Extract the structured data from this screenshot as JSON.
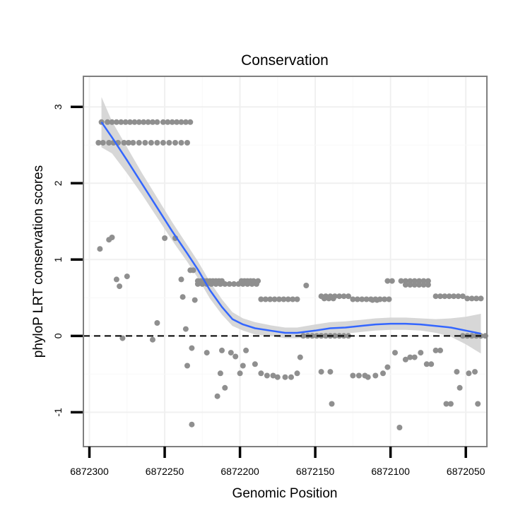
{
  "chart_data": {
    "type": "scatter",
    "title": "Conservation",
    "xlabel": "Genomic Position",
    "ylabel": "phyloP LRT conservation scores",
    "x_reversed": true,
    "xlim": [
      6872304,
      6872036
    ],
    "ylim": [
      -1.45,
      3.4
    ],
    "x_ticks": [
      6872300,
      6872250,
      6872200,
      6872150,
      6872100,
      6872050
    ],
    "x_tick_labels": [
      "6872300",
      "6872250",
      "6872200",
      "6872150",
      "6872100",
      "6872050"
    ],
    "y_ticks": [
      -1,
      0,
      1,
      2,
      3
    ],
    "y_tick_labels": [
      "-1",
      "0",
      "1",
      "2",
      "3"
    ],
    "reference_line": {
      "y": 0,
      "style": "dashed",
      "color": "#000000"
    },
    "colors": {
      "points": "#8f8f8f",
      "smooth_line": "#3366ff",
      "ribbon": "#d3d3d3",
      "panel_border": "#7f7f7f",
      "grid_major": "#f0f0f0",
      "grid_minor": "#f8f8f8"
    },
    "series": [
      {
        "name": "phyloP points",
        "points": [
          [
            6872292,
            2.8
          ],
          [
            6872288,
            2.8
          ],
          [
            6872285,
            2.8
          ],
          [
            6872282,
            2.8
          ],
          [
            6872279,
            2.8
          ],
          [
            6872276,
            2.8
          ],
          [
            6872273,
            2.8
          ],
          [
            6872270,
            2.8
          ],
          [
            6872267,
            2.8
          ],
          [
            6872264,
            2.8
          ],
          [
            6872261,
            2.8
          ],
          [
            6872258,
            2.8
          ],
          [
            6872255,
            2.8
          ],
          [
            6872251,
            2.8
          ],
          [
            6872248,
            2.8
          ],
          [
            6872245,
            2.8
          ],
          [
            6872242,
            2.8
          ],
          [
            6872239,
            2.8
          ],
          [
            6872236,
            2.8
          ],
          [
            6872233,
            2.8
          ],
          [
            6872294,
            2.53
          ],
          [
            6872291,
            2.53
          ],
          [
            6872287,
            2.53
          ],
          [
            6872284,
            2.53
          ],
          [
            6872281,
            2.53
          ],
          [
            6872277,
            2.53
          ],
          [
            6872274,
            2.53
          ],
          [
            6872271,
            2.53
          ],
          [
            6872267,
            2.53
          ],
          [
            6872263,
            2.53
          ],
          [
            6872259,
            2.53
          ],
          [
            6872255,
            2.53
          ],
          [
            6872251,
            2.53
          ],
          [
            6872247,
            2.53
          ],
          [
            6872243,
            2.53
          ],
          [
            6872239,
            2.53
          ],
          [
            6872235,
            2.53
          ],
          [
            6872293,
            1.14
          ],
          [
            6872287,
            1.26
          ],
          [
            6872285,
            1.29
          ],
          [
            6872282,
            0.74
          ],
          [
            6872280,
            0.65
          ],
          [
            6872275,
            0.78
          ],
          [
            6872278,
            -0.03
          ],
          [
            6872258,
            -0.05
          ],
          [
            6872255,
            0.17
          ],
          [
            6872250,
            1.28
          ],
          [
            6872243,
            1.28
          ],
          [
            6872239,
            0.74
          ],
          [
            6872238,
            0.51
          ],
          [
            6872236,
            0.09
          ],
          [
            6872235,
            -0.39
          ],
          [
            6872232,
            -0.16
          ],
          [
            6872233,
            0.86
          ],
          [
            6872231,
            0.86
          ],
          [
            6872232,
            -1.16
          ],
          [
            6872230,
            0.47
          ],
          [
            6872222,
            -0.22
          ],
          [
            6872215,
            -0.79
          ],
          [
            6872213,
            -0.49
          ],
          [
            6872212,
            -0.19
          ],
          [
            6872210,
            -0.68
          ],
          [
            6872206,
            -0.22
          ],
          [
            6872203,
            -0.27
          ],
          [
            6872200,
            -0.49
          ],
          [
            6872198,
            -0.39
          ],
          [
            6872196,
            -0.19
          ],
          [
            6872190,
            -0.37
          ],
          [
            6872186,
            -0.49
          ],
          [
            6872182,
            -0.52
          ],
          [
            6872178,
            -0.52
          ],
          [
            6872175,
            -0.54
          ],
          [
            6872170,
            -0.54
          ],
          [
            6872166,
            -0.54
          ],
          [
            6872162,
            -0.49
          ],
          [
            6872160,
            -0.28
          ],
          [
            6872146,
            -0.47
          ],
          [
            6872140,
            -0.47
          ],
          [
            6872139,
            -0.89
          ],
          [
            6872125,
            -0.52
          ],
          [
            6872121,
            -0.52
          ],
          [
            6872117,
            -0.52
          ],
          [
            6872115,
            -0.54
          ],
          [
            6872110,
            -0.52
          ],
          [
            6872105,
            -0.49
          ],
          [
            6872102,
            -0.41
          ],
          [
            6872097,
            -0.22
          ],
          [
            6872094,
            -1.2
          ],
          [
            6872090,
            -0.31
          ],
          [
            6872087,
            -0.28
          ],
          [
            6872084,
            -0.28
          ],
          [
            6872080,
            -0.22
          ],
          [
            6872076,
            -0.37
          ],
          [
            6872073,
            -0.37
          ],
          [
            6872070,
            -0.19
          ],
          [
            6872067,
            -0.19
          ],
          [
            6872063,
            -0.89
          ],
          [
            6872060,
            -0.89
          ],
          [
            6872056,
            -0.47
          ],
          [
            6872054,
            -0.68
          ],
          [
            6872048,
            -0.49
          ],
          [
            6872044,
            -0.47
          ],
          [
            6872042,
            -0.89
          ],
          [
            6872156,
            0.66
          ],
          [
            6872228,
            0.72
          ],
          [
            6872226,
            0.72
          ],
          [
            6872224,
            0.72
          ],
          [
            6872222,
            0.72
          ],
          [
            6872220,
            0.72
          ],
          [
            6872218,
            0.72
          ],
          [
            6872216,
            0.72
          ],
          [
            6872214,
            0.72
          ],
          [
            6872212,
            0.72
          ],
          [
            6872228,
            0.68
          ],
          [
            6872225,
            0.68
          ],
          [
            6872222,
            0.68
          ],
          [
            6872219,
            0.68
          ],
          [
            6872216,
            0.68
          ],
          [
            6872213,
            0.68
          ],
          [
            6872210,
            0.68
          ],
          [
            6872207,
            0.68
          ],
          [
            6872204,
            0.68
          ],
          [
            6872201,
            0.68
          ],
          [
            6872198,
            0.68
          ],
          [
            6872195,
            0.68
          ],
          [
            6872192,
            0.68
          ],
          [
            6872189,
            0.68
          ],
          [
            6872199,
            0.72
          ],
          [
            6872197,
            0.72
          ],
          [
            6872195,
            0.72
          ],
          [
            6872193,
            0.72
          ],
          [
            6872191,
            0.72
          ],
          [
            6872188,
            0.72
          ],
          [
            6872186,
            0.48
          ],
          [
            6872183,
            0.48
          ],
          [
            6872180,
            0.48
          ],
          [
            6872177,
            0.48
          ],
          [
            6872174,
            0.48
          ],
          [
            6872171,
            0.48
          ],
          [
            6872168,
            0.48
          ],
          [
            6872165,
            0.48
          ],
          [
            6872162,
            0.48
          ],
          [
            6872158,
            0.0
          ],
          [
            6872155,
            0.0
          ],
          [
            6872152,
            0.0
          ],
          [
            6872149,
            0.0
          ],
          [
            6872146,
            0.0
          ],
          [
            6872143,
            0.0
          ],
          [
            6872140,
            0.0
          ],
          [
            6872137,
            0.0
          ],
          [
            6872134,
            0.0
          ],
          [
            6872131,
            0.0
          ],
          [
            6872128,
            0.0
          ],
          [
            6872146,
            0.52
          ],
          [
            6872143,
            0.52
          ],
          [
            6872140,
            0.52
          ],
          [
            6872137,
            0.52
          ],
          [
            6872134,
            0.52
          ],
          [
            6872131,
            0.52
          ],
          [
            6872128,
            0.52
          ],
          [
            6872144,
            0.49
          ],
          [
            6872141,
            0.49
          ],
          [
            6872138,
            0.49
          ],
          [
            6872125,
            0.48
          ],
          [
            6872122,
            0.48
          ],
          [
            6872119,
            0.48
          ],
          [
            6872116,
            0.48
          ],
          [
            6872113,
            0.48
          ],
          [
            6872110,
            0.48
          ],
          [
            6872107,
            0.48
          ],
          [
            6872104,
            0.48
          ],
          [
            6872101,
            0.48
          ],
          [
            6872112,
            0.47
          ],
          [
            6872109,
            0.47
          ],
          [
            6872102,
            0.72
          ],
          [
            6872099,
            0.72
          ],
          [
            6872093,
            0.72
          ],
          [
            6872090,
            0.72
          ],
          [
            6872087,
            0.72
          ],
          [
            6872084,
            0.72
          ],
          [
            6872081,
            0.72
          ],
          [
            6872078,
            0.72
          ],
          [
            6872075,
            0.72
          ],
          [
            6872090,
            0.67
          ],
          [
            6872087,
            0.67
          ],
          [
            6872084,
            0.67
          ],
          [
            6872081,
            0.67
          ],
          [
            6872078,
            0.67
          ],
          [
            6872075,
            0.67
          ],
          [
            6872070,
            0.52
          ],
          [
            6872067,
            0.52
          ],
          [
            6872064,
            0.52
          ],
          [
            6872061,
            0.52
          ],
          [
            6872058,
            0.52
          ],
          [
            6872055,
            0.52
          ],
          [
            6872052,
            0.52
          ],
          [
            6872049,
            0.49
          ],
          [
            6872046,
            0.49
          ],
          [
            6872043,
            0.49
          ],
          [
            6872040,
            0.49
          ],
          [
            6872052,
            0.0
          ],
          [
            6872049,
            0.0
          ],
          [
            6872046,
            0.0
          ],
          [
            6872043,
            0.0
          ],
          [
            6872040,
            0.0
          ],
          [
            6872037,
            0.0
          ]
        ]
      },
      {
        "name": "loess smooth",
        "points": [
          [
            6872292,
            2.8
          ],
          [
            6872285,
            2.6
          ],
          [
            6872275,
            2.3
          ],
          [
            6872265,
            1.99
          ],
          [
            6872255,
            1.68
          ],
          [
            6872245,
            1.37
          ],
          [
            6872235,
            1.08
          ],
          [
            6872228,
            0.87
          ],
          [
            6872220,
            0.6
          ],
          [
            6872212,
            0.38
          ],
          [
            6872205,
            0.22
          ],
          [
            6872198,
            0.15
          ],
          [
            6872190,
            0.1
          ],
          [
            6872180,
            0.07
          ],
          [
            6872170,
            0.04
          ],
          [
            6872162,
            0.04
          ],
          [
            6872150,
            0.07
          ],
          [
            6872140,
            0.1
          ],
          [
            6872130,
            0.11
          ],
          [
            6872120,
            0.13
          ],
          [
            6872110,
            0.15
          ],
          [
            6872100,
            0.16
          ],
          [
            6872090,
            0.16
          ],
          [
            6872080,
            0.15
          ],
          [
            6872070,
            0.13
          ],
          [
            6872060,
            0.11
          ],
          [
            6872050,
            0.07
          ],
          [
            6872040,
            0.03
          ]
        ],
        "ribbon_half_width": [
          0.33,
          0.21,
          0.17,
          0.14,
          0.13,
          0.12,
          0.11,
          0.11,
          0.11,
          0.1,
          0.09,
          0.08,
          0.08,
          0.07,
          0.07,
          0.07,
          0.08,
          0.08,
          0.08,
          0.08,
          0.08,
          0.08,
          0.08,
          0.08,
          0.09,
          0.12,
          0.18,
          0.26
        ]
      }
    ]
  }
}
